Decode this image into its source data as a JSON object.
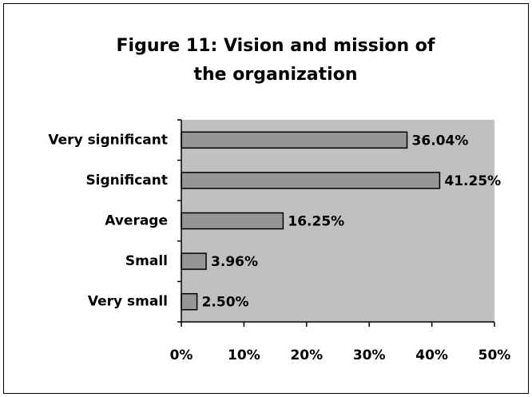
{
  "chart_data": {
    "type": "bar",
    "orientation": "horizontal",
    "title": "Figure 11: Vision and mission of the organization",
    "categories": [
      "Very significant",
      "Significant",
      "Average",
      "Small",
      "Very small"
    ],
    "values": [
      36.04,
      41.25,
      16.25,
      3.96,
      2.5
    ],
    "value_labels": [
      "36.04%",
      "41.25%",
      "16.25%",
      "3.96%",
      "2.50%"
    ],
    "color": "#969696",
    "plot_background": "#c0c0c0",
    "xlim": [
      0,
      50
    ],
    "xticks": [
      {
        "value": 0,
        "label": "0%"
      },
      {
        "value": 10,
        "label": "10%"
      },
      {
        "value": 20,
        "label": "20%"
      },
      {
        "value": 30,
        "label": "30%"
      },
      {
        "value": 40,
        "label": "40%"
      },
      {
        "value": 50,
        "label": "50%"
      }
    ],
    "grid": false
  }
}
